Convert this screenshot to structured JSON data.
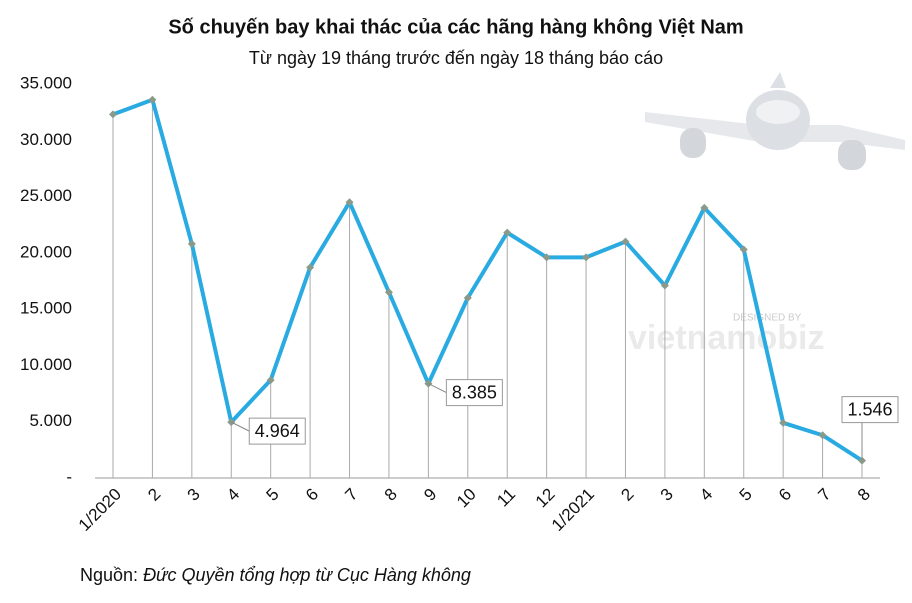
{
  "chart_data": {
    "type": "line",
    "title": "Số chuyến bay khai thác của các hãng hàng không Việt Nam",
    "subtitle": "Từ ngày 19 tháng trước đến ngày 18 tháng báo cáo",
    "categories": [
      "1/2020",
      "2",
      "3",
      "4",
      "5",
      "6",
      "7",
      "8",
      "9",
      "10",
      "11",
      "12",
      "1/2021",
      "2",
      "3",
      "4",
      "5",
      "6",
      "7",
      "8"
    ],
    "series": [
      {
        "color": "#29abe2",
        "values": [
          32300,
          33600,
          20800,
          4964,
          8700,
          18700,
          24500,
          16500,
          8385,
          16000,
          21800,
          19600,
          19600,
          21000,
          17100,
          24000,
          20300,
          4900,
          3800,
          1546
        ],
        "value_labels": [
          null,
          null,
          null,
          "4.964",
          null,
          null,
          null,
          null,
          "8.385",
          null,
          null,
          null,
          null,
          null,
          null,
          null,
          null,
          null,
          null,
          "1.546"
        ]
      }
    ],
    "ylim": [
      0,
      35000
    ],
    "yticks": [
      {
        "value": 0,
        "label": "-"
      },
      {
        "value": 5000,
        "label": "5.000"
      },
      {
        "value": 10000,
        "label": "10.000"
      },
      {
        "value": 15000,
        "label": "15.000"
      },
      {
        "value": 20000,
        "label": "20.000"
      },
      {
        "value": 25000,
        "label": "25.000"
      },
      {
        "value": 30000,
        "label": "30.000"
      },
      {
        "value": 35000,
        "label": "35.000"
      }
    ],
    "source_label": "Nguồn:",
    "source": "Đức Quyền tổng hợp từ Cục Hàng không",
    "watermark": [
      "DESIGNED BY",
      "vietnamobiz"
    ]
  }
}
